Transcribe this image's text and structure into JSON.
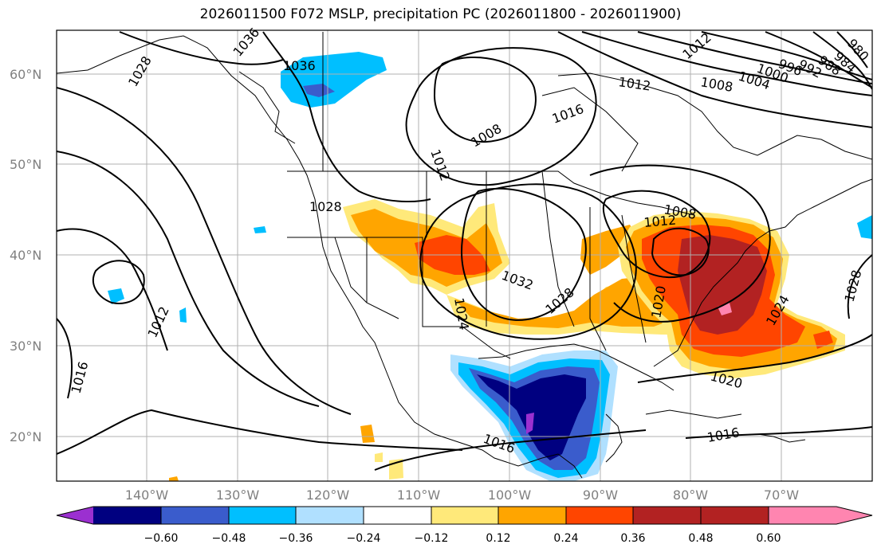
{
  "title": "2026011500 F072 MSLP, precipitation PC (2026011800 - 2026011900)",
  "map": {
    "lat_labels": [
      "60°N",
      "50°N",
      "40°N",
      "30°N",
      "20°N"
    ],
    "lon_labels": [
      "140°W",
      "130°W",
      "120°W",
      "110°W",
      "100°W",
      "90°W",
      "80°W",
      "70°W"
    ],
    "isobar_labels": [
      "1036",
      "1036",
      "1028",
      "1012",
      "1008",
      "1016",
      "1012",
      "1008",
      "1004",
      "1000",
      "996",
      "992",
      "988",
      "984",
      "980",
      "1028",
      "1032",
      "1024",
      "1028",
      "1012",
      "1008",
      "1020",
      "1024",
      "1028",
      "1020",
      "1016",
      "1012",
      "1016",
      "1016",
      "1012"
    ],
    "colors": {
      "land_outline": "#000000",
      "grid": "#b0b0b0",
      "neg_060": "#9b30d0",
      "neg_048": "#000080",
      "neg_036": "#3a5ccc",
      "neg_024": "#00bfff",
      "neg_012": "#b0e0ff",
      "pos_012": "#ffe97a",
      "pos_024": "#ffa500",
      "pos_036": "#ff4500",
      "pos_048": "#b22222",
      "pos_060": "#ff85b0"
    }
  },
  "colorbar": {
    "ticks": [
      "−0.60",
      "−0.48",
      "−0.36",
      "−0.24",
      "−0.12",
      "0.12",
      "0.24",
      "0.36",
      "0.48",
      "0.60"
    ],
    "colors": [
      "#9b30d0",
      "#000080",
      "#3a5ccc",
      "#00bfff",
      "#b0e0ff",
      "#ffffff",
      "#ffe97a",
      "#ffa500",
      "#ff4500",
      "#b22222",
      "#ff85b0"
    ]
  }
}
